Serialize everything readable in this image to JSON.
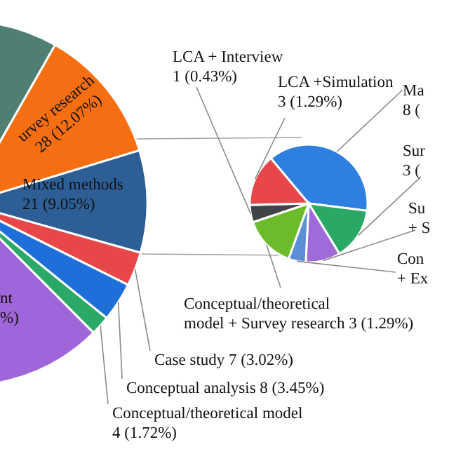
{
  "chart_data": [
    {
      "type": "pie",
      "categories": [
        null,
        "urvey research\n28 (12.07%)",
        "Mixed methods\n21 (9.05%)",
        "Case study 7 (3.02%)",
        "Conceptual analysis 8 (3.45%)",
        "Conceptual/theoretical model\n4 (1.72%)",
        "nt\n%)"
      ],
      "values": [
        84,
        28,
        21,
        7,
        8,
        4,
        80
      ],
      "colors": [
        "#4e7f72",
        "#f56f12",
        "#2e5e96",
        "#e8474a",
        "#1e6fd9",
        "#2aa866",
        "#a065d8"
      ]
    },
    {
      "type": "pie",
      "categories": [
        "Ma\n8 (",
        "Sur\n3 (",
        "Su\n+ S",
        "Con\n+ Ex",
        "Conceptual/theoretical\nmodel + Survey research 3 (1.29%)",
        "LCA + Interview\n1 (0.43%)",
        "LCA +Simulation\n3 (1.29%)"
      ],
      "values": [
        8,
        3,
        2,
        1,
        3,
        1,
        3
      ],
      "colors": [
        "#2f7fe0",
        "#2aa866",
        "#a06bd8",
        "#5b8fd6",
        "#6bbb2a",
        "#404448",
        "#e8474a"
      ]
    }
  ]
}
